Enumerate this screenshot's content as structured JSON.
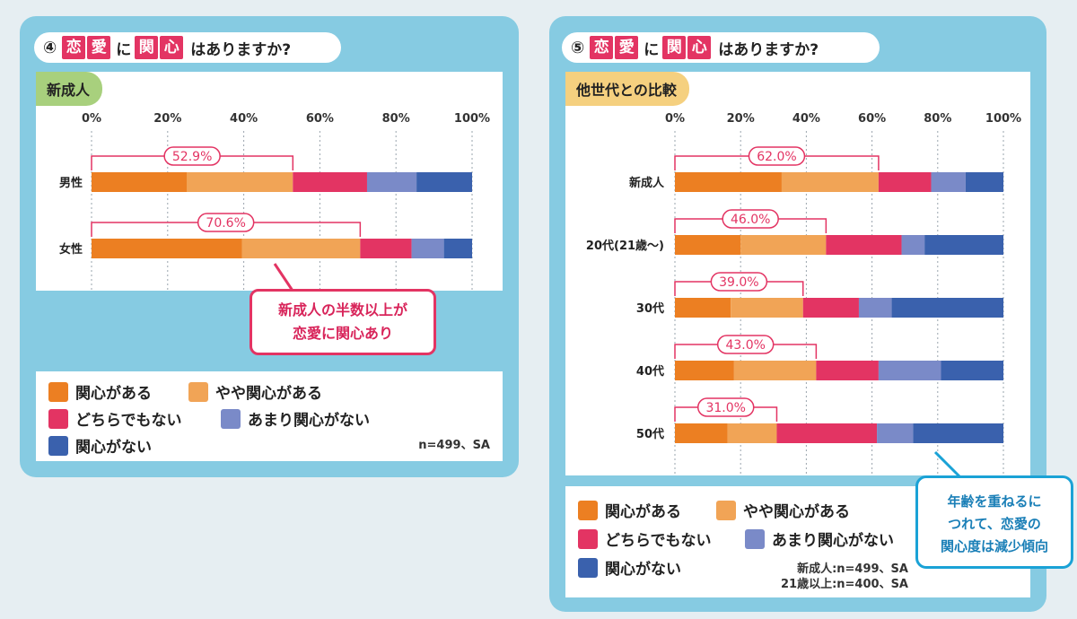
{
  "left": {
    "question": {
      "num": "④",
      "c1": "恋",
      "c2": "愛",
      "particle": "に",
      "c3": "関",
      "c4": "心",
      "tail": "はありますか?"
    },
    "tag": "新成人",
    "callout": [
      "新成人の半数以上が",
      "恋愛に関心あり"
    ],
    "note": [
      "n=499、SA"
    ]
  },
  "right": {
    "question": {
      "num": "⑤",
      "c1": "恋",
      "c2": "愛",
      "particle": "に",
      "c3": "関",
      "c4": "心",
      "tail": "はありますか?"
    },
    "tag": "他世代との比較",
    "callout": [
      "年齢を重ねるに",
      "つれて、恋愛の",
      "関心度は減少傾向"
    ],
    "note": [
      "新成人:n=499、SA",
      "21歳以上:n=400、SA"
    ]
  },
  "legend": [
    {
      "label": "関心がある",
      "color": "#ec7f22"
    },
    {
      "label": "やや関心がある",
      "color": "#f1a456"
    },
    {
      "label": "どちらでもない",
      "color": "#e33463"
    },
    {
      "label": "あまり関心がない",
      "color": "#7a8ac8"
    },
    {
      "label": "関心がない",
      "color": "#3a61ad"
    }
  ],
  "chart_data": [
    {
      "type": "bar",
      "orientation": "horizontal",
      "stacked": true,
      "title": "新成人",
      "categories": [
        "男性",
        "女性"
      ],
      "xlim": [
        0,
        100
      ],
      "xticks": [
        "0%",
        "20%",
        "40%",
        "60%",
        "80%",
        "100%"
      ],
      "series": [
        {
          "name": "関心がある",
          "values": [
            25,
            39.5
          ]
        },
        {
          "name": "やや関心がある",
          "values": [
            27.9,
            31.1
          ]
        },
        {
          "name": "どちらでもない",
          "values": [
            19.5,
            13.5
          ]
        },
        {
          "name": "あまり関心がない",
          "values": [
            13,
            8.5
          ]
        },
        {
          "name": "関心がない",
          "values": [
            14.6,
            7.4
          ]
        }
      ],
      "annotations": [
        "52.9%",
        "70.6%"
      ],
      "annotation_values": [
        52.9,
        70.6
      ]
    },
    {
      "type": "bar",
      "orientation": "horizontal",
      "stacked": true,
      "title": "他世代との比較",
      "categories": [
        "新成人",
        "20代(21歳〜)",
        "30代",
        "40代",
        "50代"
      ],
      "xlim": [
        0,
        100
      ],
      "xticks": [
        "0%",
        "20%",
        "40%",
        "60%",
        "80%",
        "100%"
      ],
      "series": [
        {
          "name": "関心がある",
          "values": [
            32.5,
            20,
            17,
            18,
            16
          ]
        },
        {
          "name": "やや関心がある",
          "values": [
            29.5,
            26,
            22,
            25,
            15
          ]
        },
        {
          "name": "どちらでもない",
          "values": [
            16,
            23,
            17,
            19,
            30.5
          ]
        },
        {
          "name": "あまり関心がない",
          "values": [
            10.5,
            7,
            10,
            19,
            11
          ]
        },
        {
          "name": "関心がない",
          "values": [
            11.5,
            24,
            34,
            19,
            27.5
          ]
        }
      ],
      "annotations": [
        "62.0%",
        "46.0%",
        "39.0%",
        "43.0%",
        "31.0%"
      ],
      "annotation_values": [
        62.0,
        46.0,
        39.0,
        43.0,
        31.0
      ]
    }
  ]
}
